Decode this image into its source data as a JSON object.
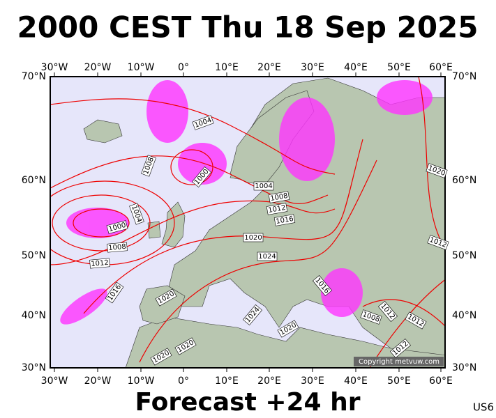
{
  "header": {
    "title": "2000 CEST Thu 18 Sep 2025"
  },
  "map": {
    "lon_labels": [
      "30°W",
      "20°W",
      "10°W",
      "0°",
      "10°E",
      "20°E",
      "30°E",
      "40°E",
      "50°E",
      "60°E"
    ],
    "lat_labels": [
      "70°N",
      "60°N",
      "50°N",
      "40°N",
      "30°N"
    ],
    "isobar_labels": [
      1004,
      1008,
      1000,
      1004,
      1008,
      1012,
      1016,
      1004,
      1000,
      1008,
      1012,
      1020,
      1024,
      1016,
      1020,
      1016,
      1024,
      1020,
      1020,
      1020,
      1008,
      1012,
      1012,
      1020,
      1012,
      1012
    ],
    "copyright": "Copyright metvuw.com"
  },
  "footer": {
    "text": "Forecast +24 hr",
    "code": "US6"
  }
}
